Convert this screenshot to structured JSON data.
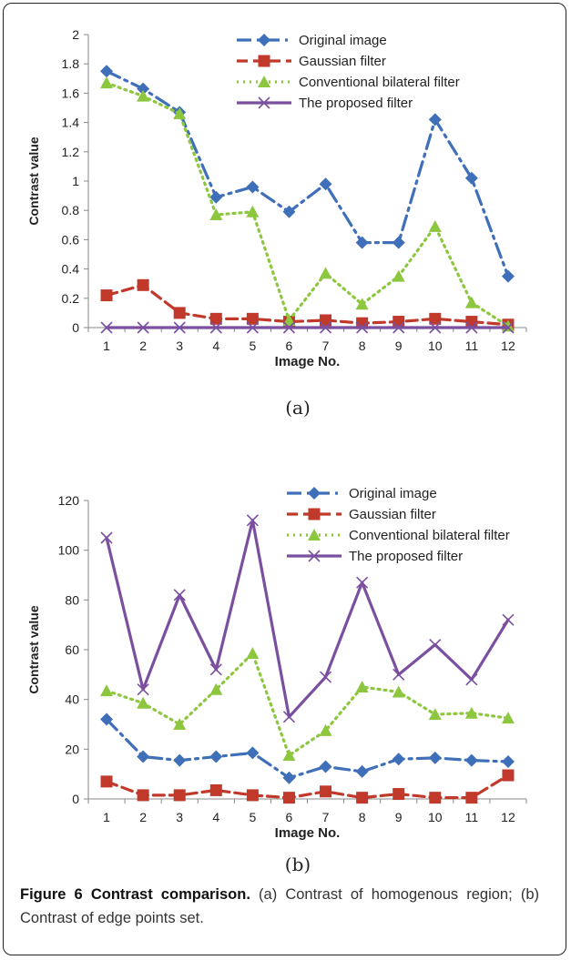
{
  "chart_data": [
    {
      "type": "line",
      "panel_label": "(a)",
      "xlabel": "Image No.",
      "ylabel": "Contrast value",
      "categories": [
        "1",
        "2",
        "3",
        "4",
        "5",
        "6",
        "7",
        "8",
        "9",
        "10",
        "11",
        "12"
      ],
      "ylim": [
        0,
        2
      ],
      "yticks": [
        "0",
        "0.2",
        "0.4",
        "0.6",
        "0.8",
        "1",
        "1.2",
        "1.4",
        "1.6",
        "1.8",
        "2"
      ],
      "grid": false,
      "legend_position": "top-right",
      "series": [
        {
          "name": "Original image",
          "color": "#3e6fb8",
          "marker": "diamond",
          "dash": "dashdot",
          "values": [
            1.75,
            1.63,
            1.47,
            0.89,
            0.96,
            0.79,
            0.98,
            0.58,
            0.58,
            1.42,
            1.02,
            0.35
          ]
        },
        {
          "name": "Gaussian filter",
          "color": "#c0392b",
          "marker": "square",
          "dash": "dash",
          "values": [
            0.22,
            0.29,
            0.1,
            0.06,
            0.06,
            0.04,
            0.05,
            0.03,
            0.04,
            0.06,
            0.04,
            0.02
          ]
        },
        {
          "name": "Conventional bilateral filter",
          "color": "#8dc63f",
          "marker": "triangle",
          "dash": "dot",
          "values": [
            1.67,
            1.58,
            1.46,
            0.77,
            0.79,
            0.05,
            0.37,
            0.16,
            0.35,
            0.69,
            0.17,
            0.01
          ]
        },
        {
          "name": "The proposed filter",
          "color": "#7b4fa0",
          "marker": "x",
          "dash": "solid",
          "values": [
            0,
            0,
            0,
            0,
            0,
            0,
            0,
            0,
            0,
            0,
            0,
            0
          ]
        }
      ]
    },
    {
      "type": "line",
      "panel_label": "(b)",
      "xlabel": "Image No.",
      "ylabel": "Contrast value",
      "categories": [
        "1",
        "2",
        "3",
        "4",
        "5",
        "6",
        "7",
        "8",
        "9",
        "10",
        "11",
        "12"
      ],
      "ylim": [
        0,
        120
      ],
      "yticks": [
        "0",
        "20",
        "40",
        "60",
        "80",
        "100",
        "120"
      ],
      "grid": false,
      "legend_position": "top-right",
      "series": [
        {
          "name": "Original image",
          "color": "#3e6fb8",
          "marker": "diamond",
          "dash": "dashdot",
          "values": [
            32,
            17,
            15.5,
            17,
            18.5,
            8.5,
            13,
            11,
            16,
            16.5,
            15.5,
            15
          ]
        },
        {
          "name": "Gaussian filter",
          "color": "#c0392b",
          "marker": "square",
          "dash": "dash",
          "values": [
            7,
            1.5,
            1.5,
            3.5,
            1.5,
            0.5,
            3,
            0.5,
            2,
            0.5,
            0.5,
            9.5
          ]
        },
        {
          "name": "Conventional bilateral filter",
          "color": "#8dc63f",
          "marker": "triangle",
          "dash": "dot",
          "values": [
            43.5,
            38.5,
            30,
            44,
            58.5,
            17.5,
            27.5,
            45,
            43,
            34,
            34.5,
            32.5
          ]
        },
        {
          "name": "The proposed filter",
          "color": "#7b4fa0",
          "marker": "x",
          "dash": "solid",
          "values": [
            105,
            44,
            82,
            52,
            112,
            33,
            49,
            87,
            50,
            62,
            48,
            72
          ]
        }
      ]
    }
  ],
  "caption": {
    "label": "Figure 6 Contrast comparison.",
    "text": " (a) Contrast of homogenous region; (b) Contrast of edge points set."
  }
}
